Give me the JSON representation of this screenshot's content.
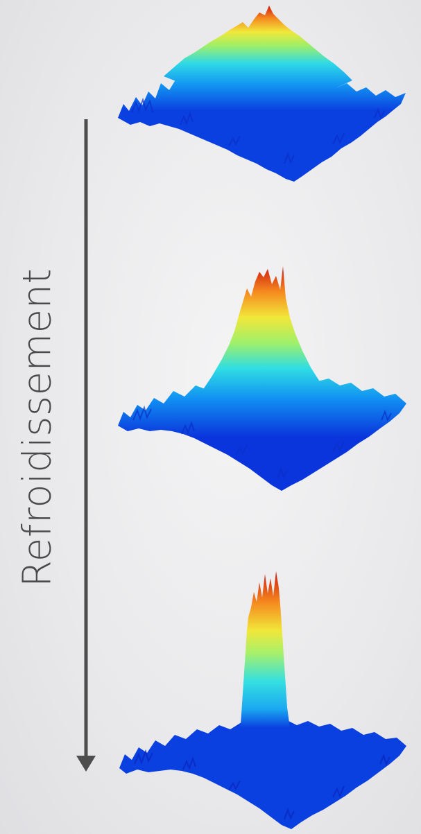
{
  "figure": {
    "side_label": "Refroidissement",
    "panels": [
      {
        "panel": "distribution-broad"
      },
      {
        "panel": "distribution-intermediate"
      },
      {
        "panel": "distribution-sharp-peak"
      }
    ],
    "colormap": [
      "#0a2fd8",
      "#0a6cf5",
      "#17c3f0",
      "#40e6d8",
      "#a8f06a",
      "#f2ea3a",
      "#f7a11e",
      "#e8401a",
      "#c4120f"
    ],
    "background": "#ececee",
    "arrow_color": "#4d4d4d"
  }
}
